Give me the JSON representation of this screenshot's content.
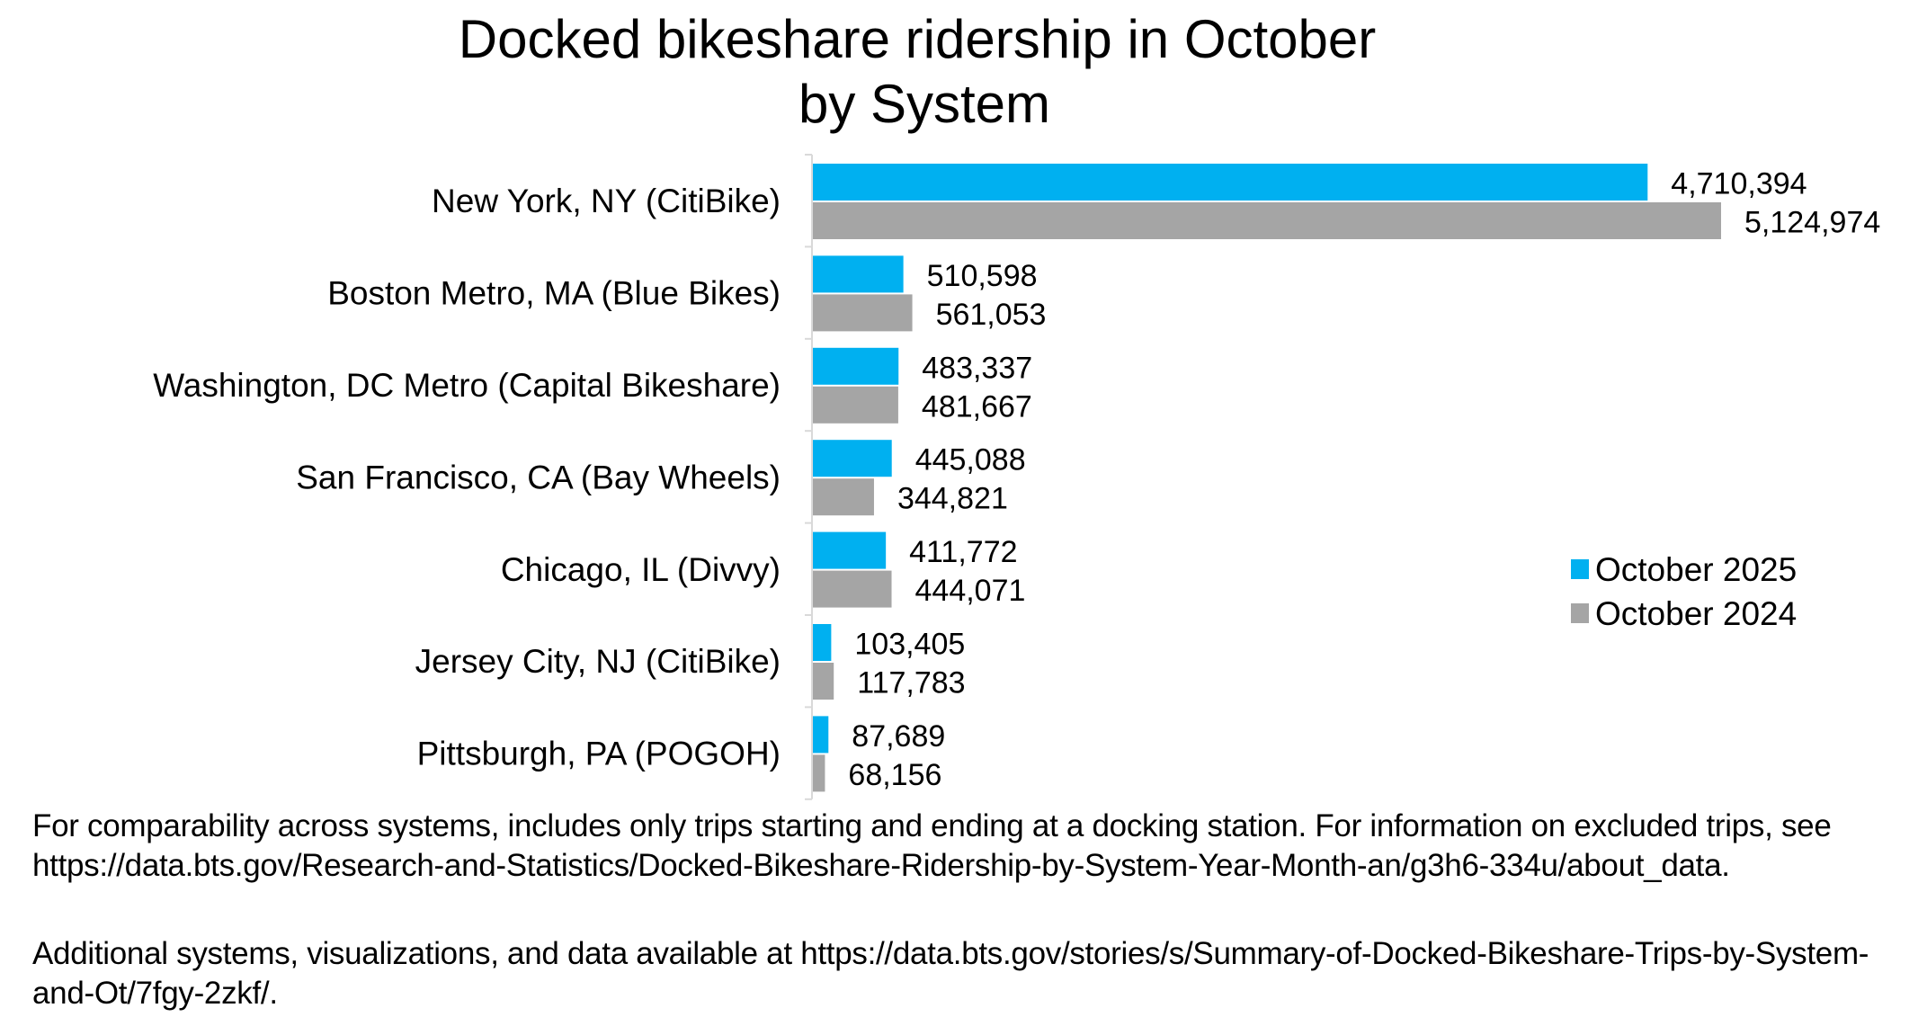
{
  "chart_data": {
    "type": "bar",
    "orientation": "horizontal",
    "title": [
      "Docked bikeshare ridership in October",
      "by System"
    ],
    "categories": [
      "New York, NY (CitiBike)",
      "Boston Metro, MA (Blue Bikes)",
      "Washington, DC Metro (Capital Bikeshare)",
      "San Francisco, CA (Bay Wheels)",
      "Chicago, IL (Divvy)",
      "Jersey City, NJ (CitiBike)",
      "Pittsburgh, PA (POGOH)"
    ],
    "series": [
      {
        "name": "October 2025",
        "color": "#00B0F0",
        "values": [
          4710394,
          510598,
          483337,
          445088,
          411772,
          103405,
          87689
        ]
      },
      {
        "name": "October 2024",
        "color": "#A5A5A5",
        "values": [
          5124974,
          561053,
          481667,
          344821,
          444071,
          117783,
          68156
        ]
      }
    ],
    "data_labels": true,
    "legend_position": "right",
    "grid": false,
    "xlim": [
      0,
      5124974
    ]
  },
  "footnotes": [
    "For comparability across systems, includes only trips starting and ending at a docking station. For information on excluded trips, see https://data.bts.gov/Research-and-Statistics/Docked-Bikeshare-Ridership-by-System-Year-Month-an/g3h6-334u/about_data.",
    "Additional systems, visualizations, and data available at https://data.bts.gov/stories/s/Summary-of-Docked-Bikeshare-Trips-by-System-and-Ot/7fgy-2zkf/."
  ]
}
